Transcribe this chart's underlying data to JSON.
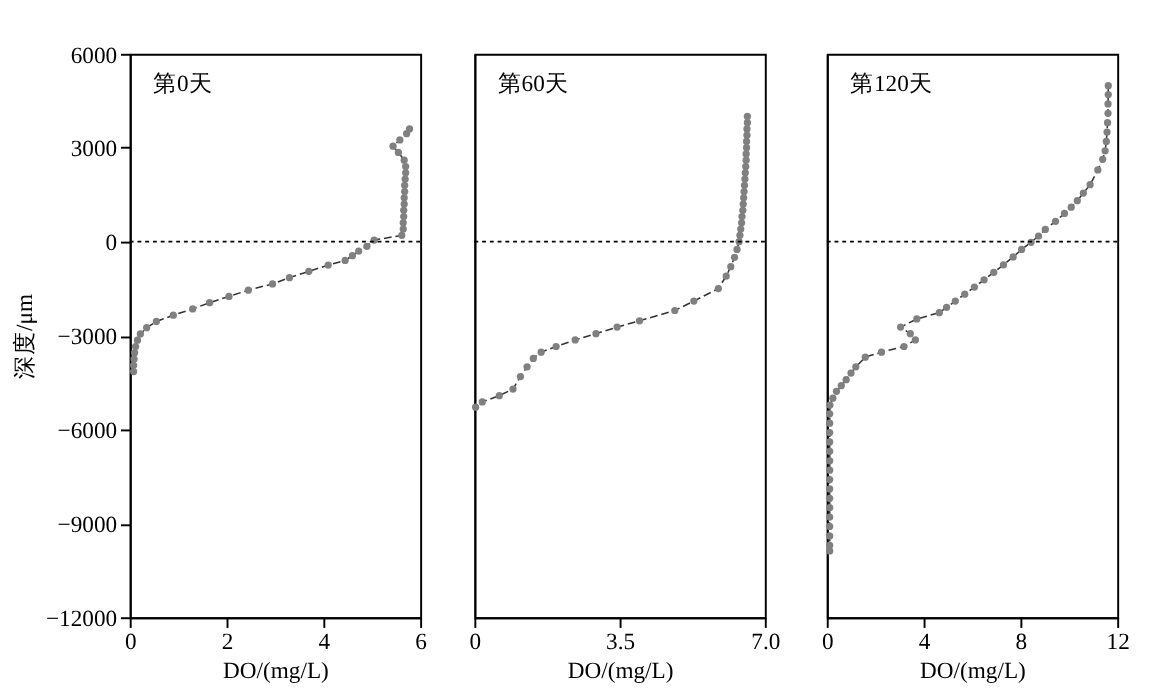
{
  "chart_data": [
    {
      "type": "line",
      "marker": "circle",
      "line_style": "dashed",
      "grid": false,
      "annotations": [
        "第0天"
      ],
      "xlabel": "DO/(mg/L)",
      "ylabel": "深度/μm",
      "xlim": [
        0,
        6
      ],
      "xticks": [
        0,
        2,
        4,
        6
      ],
      "ylim": [
        -12000,
        6000
      ],
      "yticks": [
        -12000,
        -9000,
        -6000,
        -3000,
        0,
        3000,
        6000
      ],
      "ref_lines": [
        {
          "axis": "y",
          "value": 0,
          "color": "#000000",
          "line_style": "dotted"
        }
      ],
      "series": [
        {
          "color": "#808080",
          "x": [
            5.78,
            5.72,
            5.58,
            5.44,
            5.55,
            5.67,
            5.7,
            5.7,
            5.69,
            5.68,
            5.68,
            5.67,
            5.67,
            5.66,
            5.66,
            5.65,
            5.65,
            5.62,
            5.05,
            4.9,
            4.73,
            4.6,
            4.45,
            4.1,
            3.7,
            3.3,
            2.95,
            2.45,
            2.05,
            1.65,
            1.3,
            0.9,
            0.55,
            0.35,
            0.22,
            0.16,
            0.12,
            0.1,
            0.09,
            0.08,
            0.08
          ],
          "values": [
            3600,
            3450,
            3250,
            3050,
            2850,
            2600,
            2400,
            2200,
            2000,
            1800,
            1600,
            1400,
            1200,
            1000,
            800,
            600,
            400,
            200,
            50,
            -150,
            -300,
            -450,
            -600,
            -750,
            -950,
            -1150,
            -1350,
            -1550,
            -1750,
            -1950,
            -2150,
            -2350,
            -2550,
            -2750,
            -2950,
            -3150,
            -3350,
            -3550,
            -3750,
            -3950,
            -4150
          ]
        }
      ]
    },
    {
      "type": "line",
      "marker": "circle",
      "line_style": "dashed",
      "grid": false,
      "tick_labels": "x",
      "annotations": [
        "第60天"
      ],
      "xlabel": "DO/(mg/L)",
      "xlim": [
        0,
        7
      ],
      "xticks": [
        0,
        3.5,
        {
          "value": 7,
          "label": "7.0"
        }
      ],
      "ylim": [
        -12000,
        6000
      ],
      "ref_lines": [
        {
          "axis": "y",
          "value": 0,
          "color": "#000000",
          "line_style": "dotted"
        }
      ],
      "series": [
        {
          "color": "#808080",
          "x": [
            6.58,
            6.58,
            6.57,
            6.57,
            6.56,
            6.56,
            6.55,
            6.55,
            6.54,
            6.53,
            6.52,
            6.51,
            6.5,
            6.49,
            6.48,
            6.47,
            6.45,
            6.44,
            6.42,
            6.4,
            6.38,
            6.33,
            6.27,
            6.18,
            6.07,
            5.88,
            5.29,
            4.83,
            3.98,
            3.44,
            2.93,
            2.43,
            1.97,
            1.61,
            1.42,
            1.27,
            1.11,
            0.93,
            0.6,
            0.19,
            0.03
          ],
          "values": [
            4000,
            3800,
            3600,
            3400,
            3200,
            3000,
            2800,
            2600,
            2400,
            2200,
            2000,
            1800,
            1600,
            1400,
            1200,
            1000,
            800,
            600,
            400,
            200,
            0,
            -250,
            -500,
            -800,
            -1100,
            -1500,
            -1900,
            -2200,
            -2530,
            -2730,
            -2940,
            -3140,
            -3350,
            -3530,
            -3730,
            -4000,
            -4310,
            -4710,
            -4920,
            -5120,
            -5290
          ]
        }
      ]
    },
    {
      "type": "line",
      "marker": "circle",
      "line_style": "dashed",
      "grid": false,
      "tick_labels": "x",
      "annotations": [
        "第120天"
      ],
      "xlabel": "DO/(mg/L)",
      "xlim": [
        0,
        12
      ],
      "xticks": [
        0,
        4,
        8,
        12
      ],
      "ylim": [
        -12000,
        6000
      ],
      "ref_lines": [
        {
          "axis": "y",
          "value": 0,
          "color": "#000000",
          "line_style": "dotted"
        }
      ],
      "series": [
        {
          "color": "#808080",
          "x": [
            11.63,
            11.63,
            11.62,
            11.62,
            11.6,
            11.58,
            11.55,
            11.5,
            11.4,
            11.2,
            10.88,
            10.6,
            10.35,
            10.1,
            9.82,
            9.45,
            9.03,
            8.75,
            8.44,
            8.05,
            7.7,
            7.3,
            6.9,
            6.5,
            6.1,
            5.7,
            5.31,
            4.95,
            4.65,
            3.72,
            3.05,
            3.45,
            3.66,
            3.19,
            2.26,
            1.59,
            1.2,
            1.0,
            0.8,
            0.6,
            0.4,
            0.25,
            0.13,
            0.12,
            0.12,
            0.12,
            0.12,
            0.12,
            0.12,
            0.12,
            0.12,
            0.12,
            0.12,
            0.12,
            0.12,
            0.12,
            0.12,
            0.12,
            0.12
          ],
          "values": [
            4980,
            4700,
            4400,
            4100,
            3800,
            3500,
            3200,
            2900,
            2630,
            2290,
            1820,
            1550,
            1310,
            1100,
            900,
            650,
            390,
            180,
            -20,
            -250,
            -490,
            -740,
            -980,
            -1220,
            -1450,
            -1680,
            -1900,
            -2100,
            -2270,
            -2470,
            -2730,
            -2940,
            -3140,
            -3350,
            -3530,
            -3690,
            -4000,
            -4200,
            -4410,
            -4600,
            -4780,
            -5000,
            -5220,
            -5500,
            -5800,
            -6100,
            -6400,
            -6700,
            -7000,
            -7300,
            -7600,
            -7900,
            -8200,
            -8500,
            -8800,
            -9100,
            -9400,
            -9700,
            -9880
          ]
        }
      ]
    }
  ]
}
